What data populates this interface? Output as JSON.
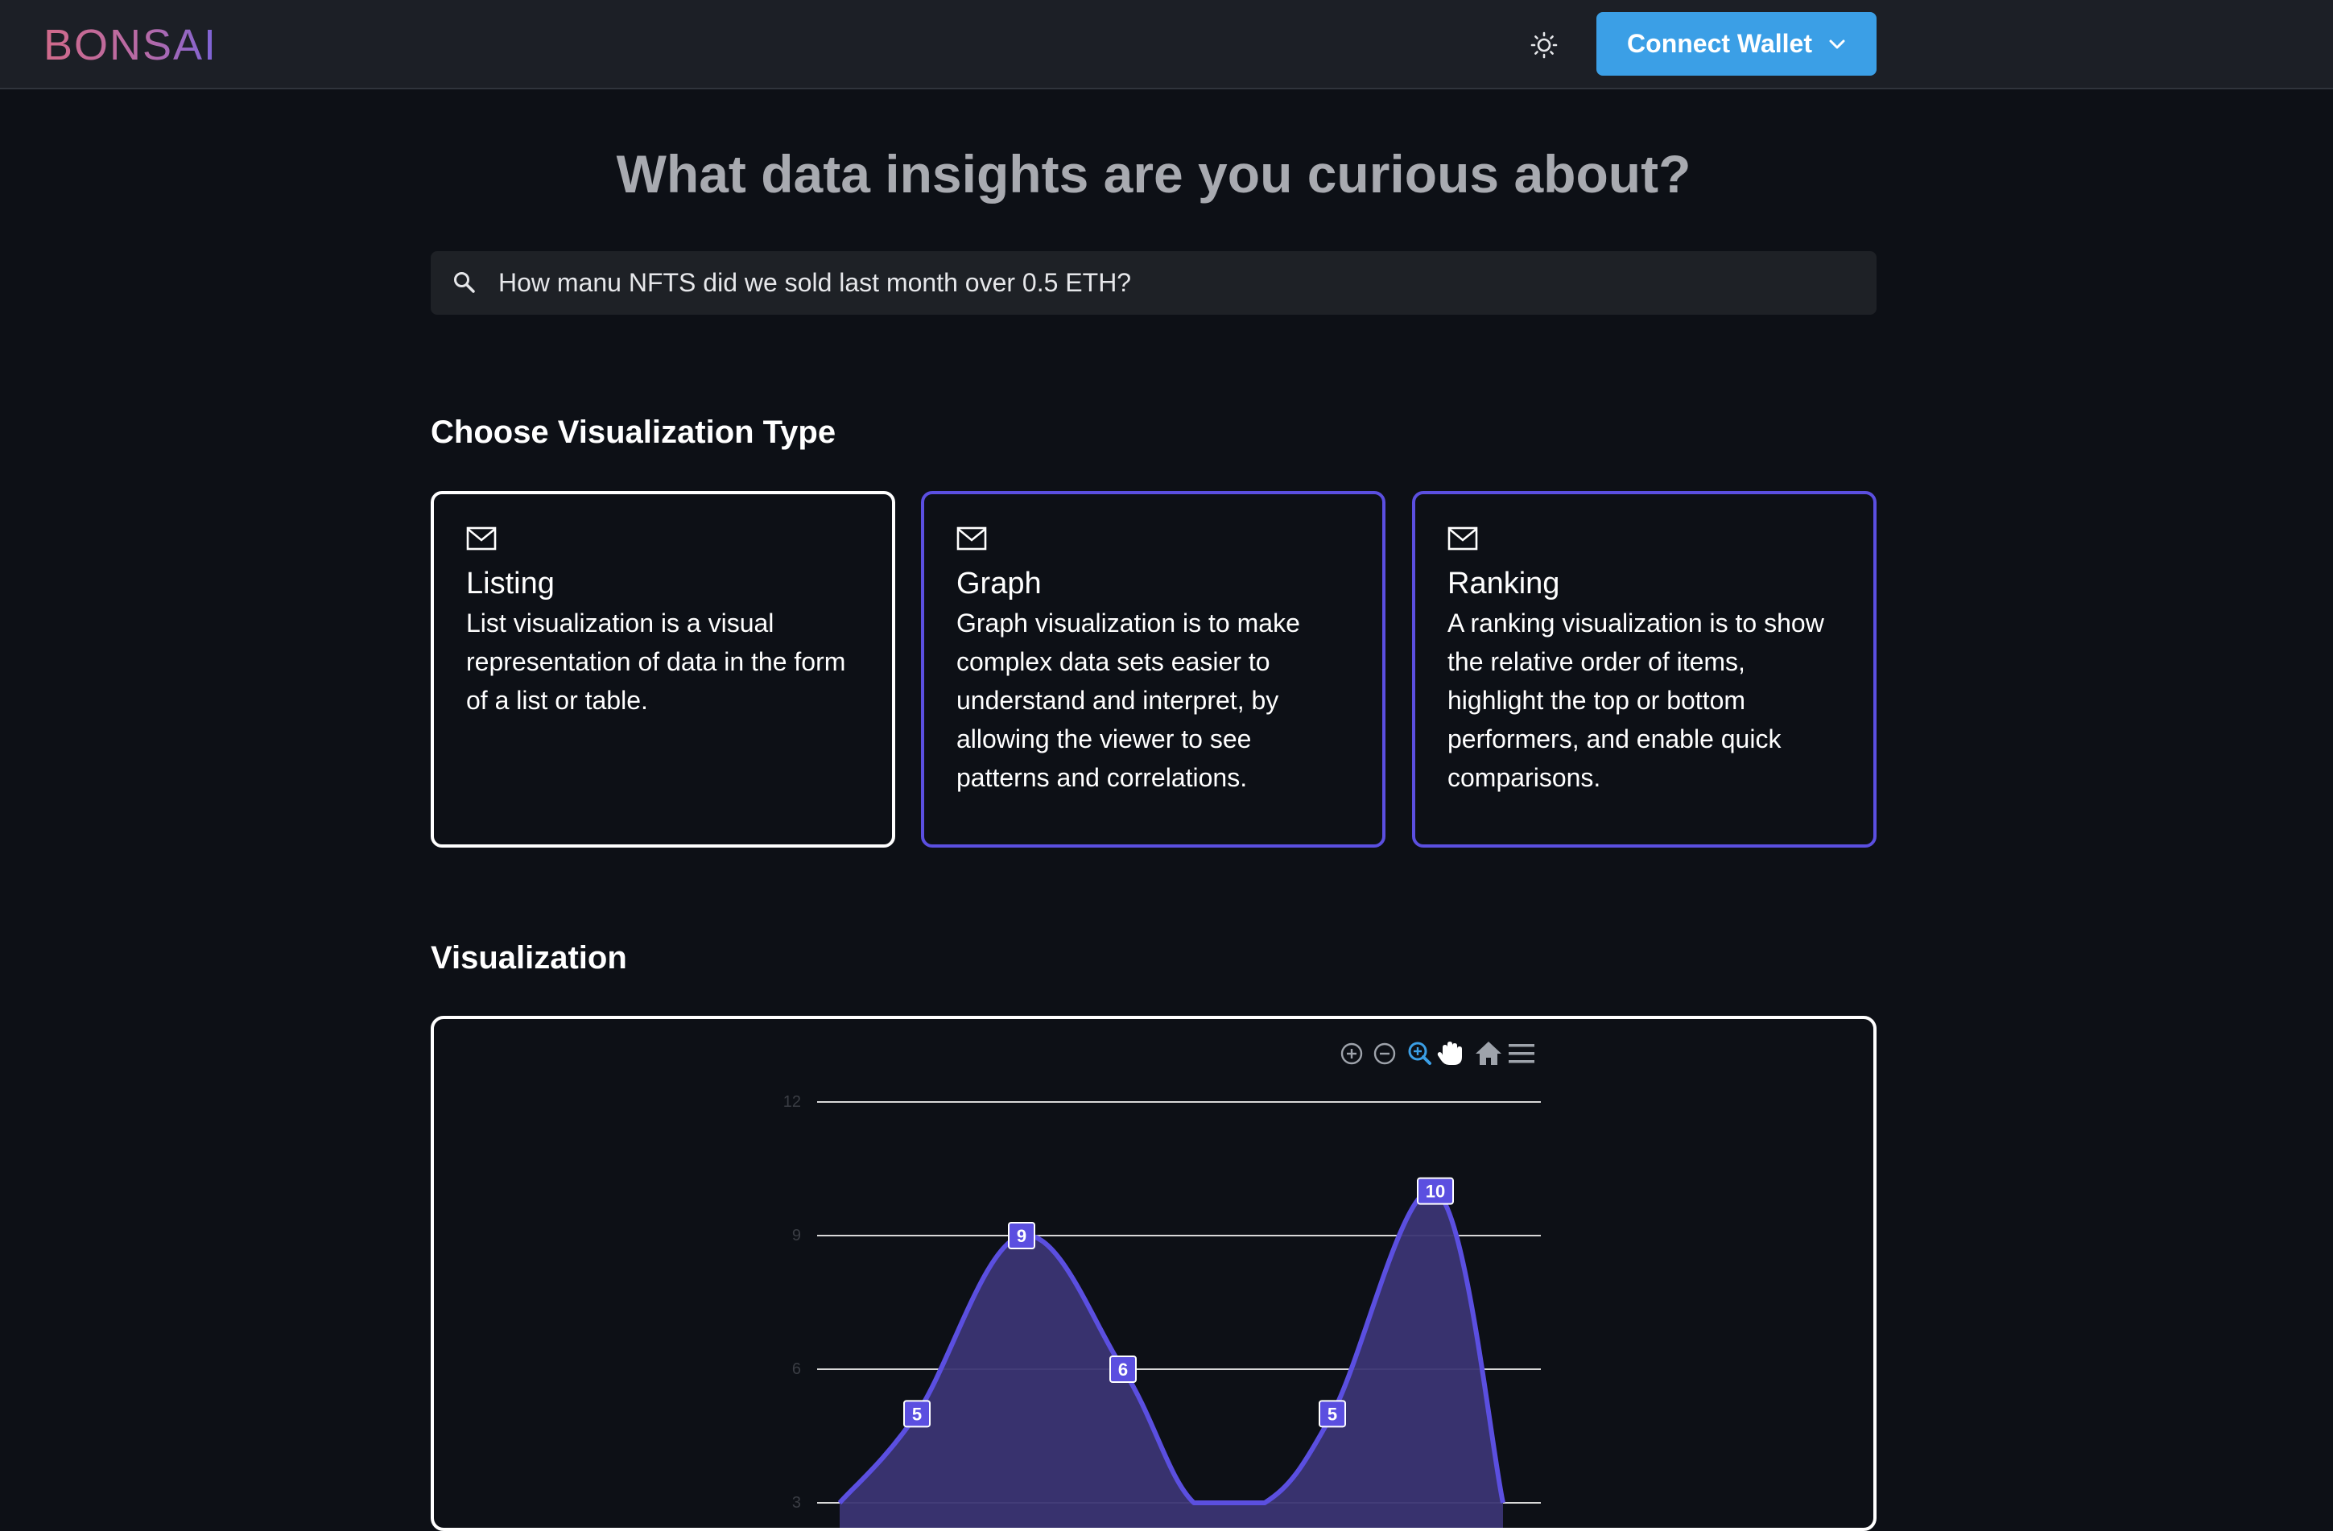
{
  "header": {
    "logo_text": "BONSAI",
    "theme_icon": "sun-icon",
    "connect_label": "Connect Wallet",
    "connect_icon": "chevron-down-icon"
  },
  "headline": "What data insights are you curious about?",
  "search": {
    "icon": "search-icon",
    "value": "How manu NFTS did we sold last month over 0.5 ETH?"
  },
  "visualization_types": {
    "title": "Choose Visualization Type",
    "cards": [
      {
        "icon": "mail-icon",
        "title": "Listing",
        "description": "List visualization is a visual representation of data in the form of a list or table.",
        "selected": true
      },
      {
        "icon": "mail-icon",
        "title": "Graph",
        "description": "Graph visualization is to make complex data sets easier to understand and interpret, by allowing the viewer to see patterns and correlations.",
        "selected": false
      },
      {
        "icon": "mail-icon",
        "title": "Ranking",
        "description": "A ranking visualization is to show the relative order of items, highlight the top or bottom performers, and enable quick comparisons.",
        "selected": false
      }
    ]
  },
  "visualization": {
    "title": "Visualization",
    "toolbar": [
      "zoom-in-icon",
      "zoom-out-icon",
      "zoom-select-icon",
      "pan-hand-icon",
      "home-icon",
      "menu-icon"
    ],
    "colors": {
      "line": "#5b4fe0",
      "fill": "#3b3573",
      "grid": "#d9d9d9",
      "tick": "#3a3d44",
      "active_tool": "#3b9fe6",
      "tool": "#9ea3ab"
    }
  },
  "chart_data": {
    "type": "area",
    "y_ticks": [
      3,
      6,
      9,
      12
    ],
    "ylim": [
      3,
      12
    ],
    "grid": true,
    "series": [
      {
        "values": [
          3,
          5,
          9,
          6,
          3,
          3,
          5,
          10,
          3
        ],
        "labeled_points": [
          1,
          2,
          3,
          6,
          7
        ]
      }
    ],
    "data_labels": [
      5,
      9,
      6,
      5,
      10
    ]
  }
}
